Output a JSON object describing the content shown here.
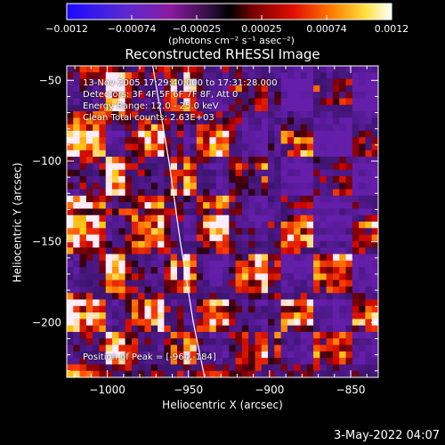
{
  "colorbar": {
    "ticks": [
      "-0.0012",
      "-0.00074",
      "-0.00025",
      "0.00025",
      "0.00074",
      "0.0012"
    ],
    "title": "(photons cm⁻² s⁻¹ asec⁻²)"
  },
  "annotations": [
    "13-Nov-2005 17:29:40.000 to 17:31:28.000",
    "Detectors: 3F 4F 5F 6F 7F 8F, Att 0",
    "Energy Range: 12.0 - 25.0 keV",
    "Clean     Total counts: 2.63E+03"
  ],
  "peak_label": "Position of Peak = [-964,-184]",
  "date_stamp": "3-May-2022 04:07",
  "chart_data": {
    "type": "heatmap",
    "title": "Reconstructed RHESSI Image",
    "xlabel": "Heliocentric X (arcsec)",
    "ylabel": "Heliocentric Y (arcsec)",
    "xlim": [
      -1025,
      -833
    ],
    "ylim": [
      -234,
      -41
    ],
    "xticks": [
      -1000,
      -950,
      -900,
      -850
    ],
    "yticks": [
      -50,
      -100,
      -150,
      -200
    ],
    "xtick_labels": [
      "−1000",
      "−950",
      "−900",
      "−850"
    ],
    "ytick_labels": [
      "−50",
      "−100",
      "−150",
      "−200"
    ],
    "colorbar_range": [
      -0.0012,
      0.0012
    ],
    "peak": [
      -964,
      -184
    ],
    "limb_line": [
      [
        -972,
        -41
      ],
      [
        -962,
        -100
      ],
      [
        -955,
        -150
      ],
      [
        -947,
        -200
      ],
      [
        -940,
        -234
      ]
    ]
  }
}
